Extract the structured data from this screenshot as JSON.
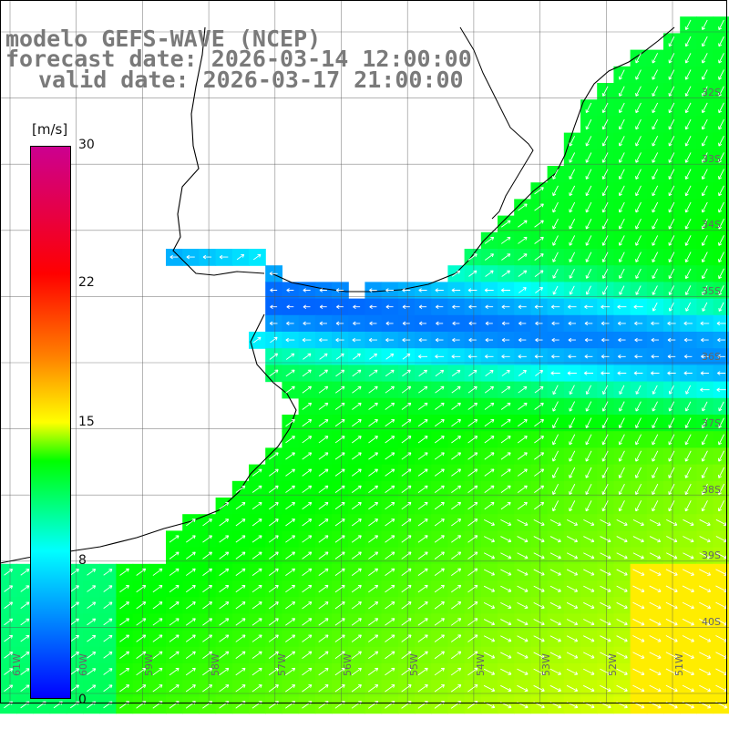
{
  "title": {
    "line1": "modelo GEFS-WAVE (NCEP)",
    "line2": "forecast date: 2026-03-14 12:00:00",
    "line3": "valid date: 2026-03-17 21:00:00"
  },
  "colorbar": {
    "unit": "[m/s]",
    "ticks": [
      "30",
      "22",
      "15",
      "8",
      "0"
    ],
    "tick_values": [
      30,
      22,
      15,
      8,
      0
    ],
    "range": [
      0,
      30
    ]
  },
  "map": {
    "lat_labels": [
      "32S",
      "33S",
      "34S",
      "35S",
      "36S",
      "37S",
      "38S",
      "39S",
      "40S"
    ],
    "lon_labels": [
      "61W",
      "60W",
      "59W",
      "58W",
      "57W",
      "56W",
      "55W",
      "54W",
      "53W",
      "52W",
      "51W"
    ],
    "colors": {
      "land": "#ffffff",
      "grid": "#000000",
      "arrow": "#ffffff",
      "coast": "#000000"
    }
  }
}
